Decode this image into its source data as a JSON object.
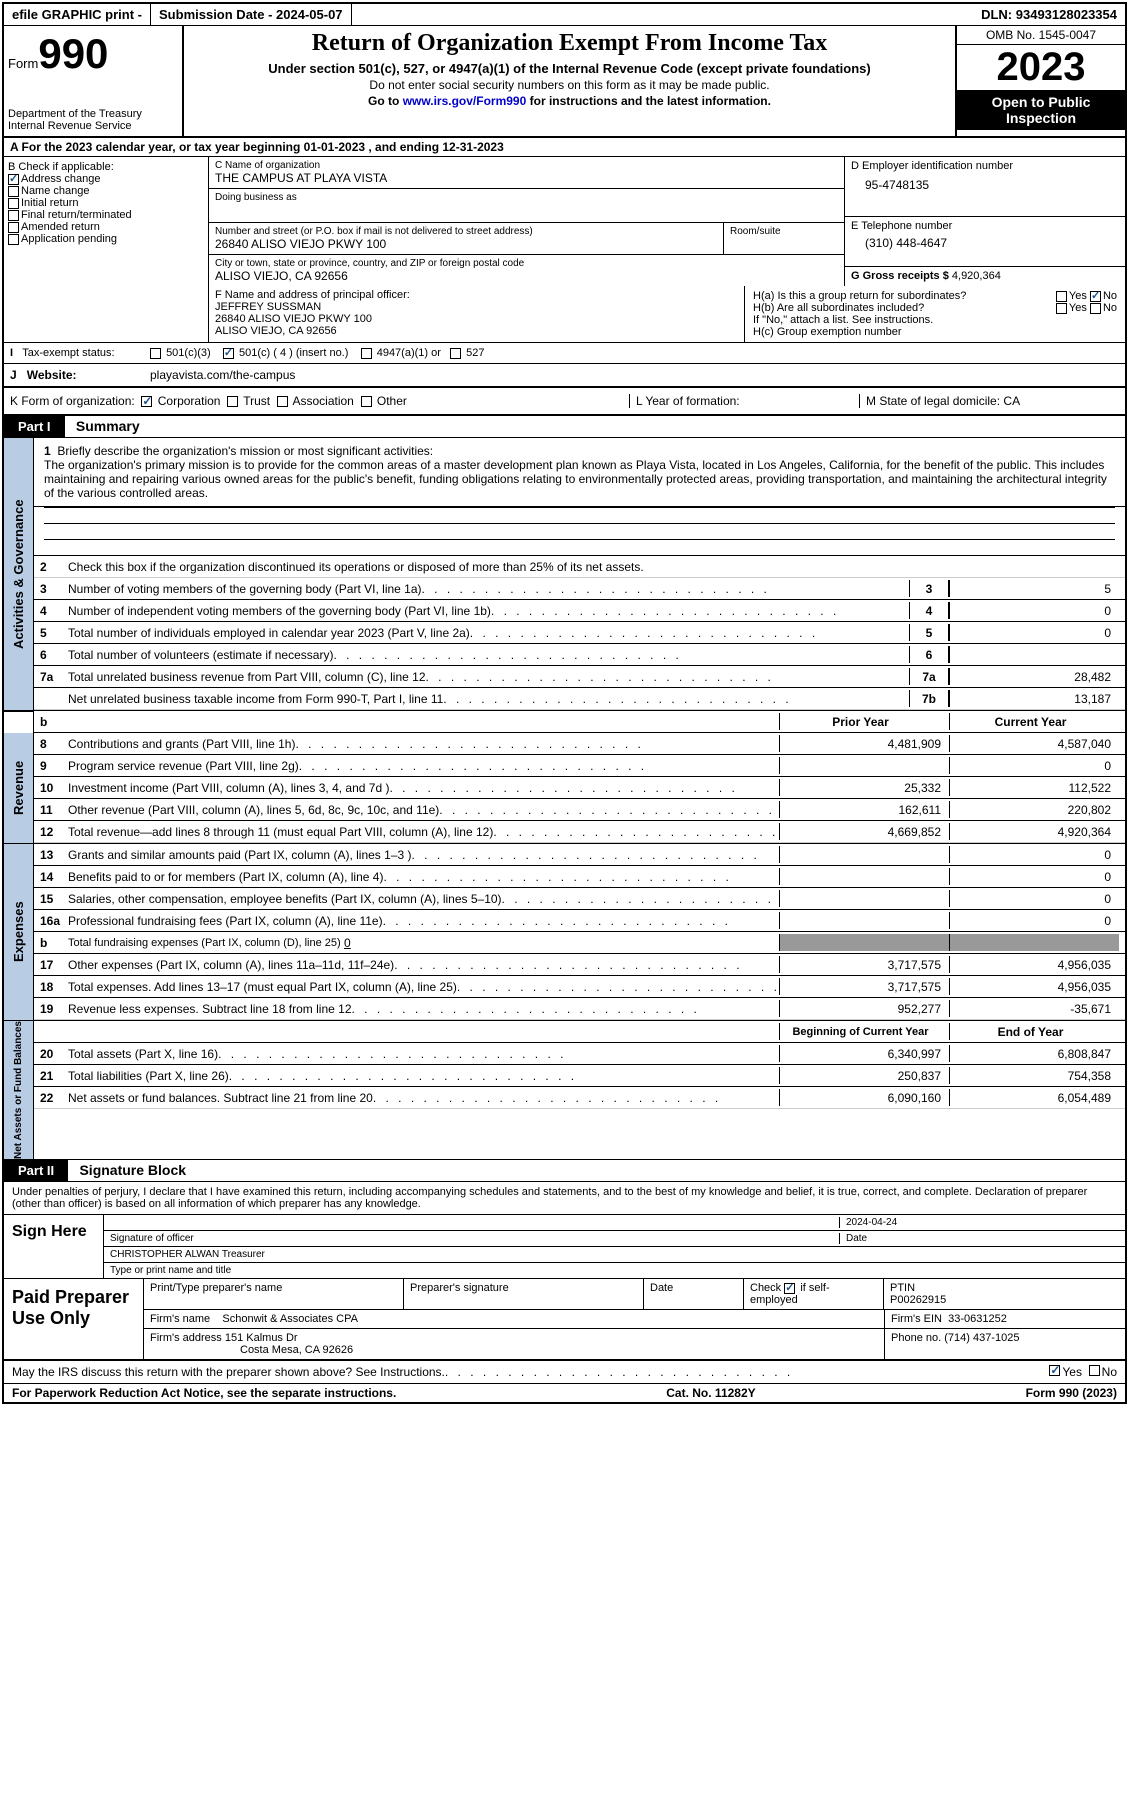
{
  "topbar": {
    "efile": "efile GRAPHIC print -",
    "submission": "Submission Date - 2024-05-07",
    "dln_label": "DLN:",
    "dln": "93493128023354"
  },
  "header": {
    "form_prefix": "Form",
    "form_num": "990",
    "dept": "Department of the Treasury Internal Revenue Service",
    "title": "Return of Organization Exempt From Income Tax",
    "sub": "Under section 501(c), 527, or 4947(a)(1) of the Internal Revenue Code (except private foundations)",
    "small1": "Do not enter social security numbers on this form as it may be made public.",
    "small2_pre": "Go to ",
    "small2_link": "www.irs.gov/Form990",
    "small2_post": " for instructions and the latest information.",
    "omb": "OMB No. 1545-0047",
    "year": "2023",
    "inspect": "Open to Public Inspection"
  },
  "rowA": "A  For the 2023 calendar year, or tax year beginning 01-01-2023    , and ending 12-31-2023",
  "B": {
    "label": "B Check if applicable:",
    "opts": [
      "Address change",
      "Name change",
      "Initial return",
      "Final return/terminated",
      "Amended return",
      "Application pending"
    ]
  },
  "C": {
    "name_lbl": "C Name of organization",
    "name": "THE CAMPUS AT PLAYA VISTA",
    "dba_lbl": "Doing business as",
    "addr_lbl": "Number and street (or P.O. box if mail is not delivered to street address)",
    "room_lbl": "Room/suite",
    "addr": "26840 ALISO VIEJO PKWY 100",
    "city_lbl": "City or town, state or province, country, and ZIP or foreign postal code",
    "city": "ALISO VIEJO, CA  92656"
  },
  "D": {
    "ein_lbl": "D Employer identification number",
    "ein": "95-4748135"
  },
  "E": {
    "tel_lbl": "E Telephone number",
    "tel": "(310) 448-4647"
  },
  "G": {
    "gross_lbl": "G Gross receipts $",
    "gross": "4,920,364"
  },
  "F": {
    "lbl": "F  Name and address of principal officer:",
    "name": "JEFFREY SUSSMAN",
    "addr1": "26840 ALISO VIEJO PKWY 100",
    "addr2": "ALISO VIEJO, CA  92656"
  },
  "H": {
    "a": "H(a)  Is this a group return for subordinates?",
    "yes": "Yes",
    "no": "No",
    "b": "H(b)  Are all subordinates included?",
    "bnote": "If \"No,\" attach a list. See instructions.",
    "c": "H(c)  Group exemption number"
  },
  "I": {
    "lbl": "Tax-exempt status:",
    "o1": "501(c)(3)",
    "o2": "501(c) ( 4 ) (insert no.)",
    "o3": "4947(a)(1) or",
    "o4": "527"
  },
  "J": {
    "lbl": "Website:",
    "val": "playavista.com/the-campus"
  },
  "K": {
    "lbl": "K Form of organization:",
    "o1": "Corporation",
    "o2": "Trust",
    "o3": "Association",
    "o4": "Other"
  },
  "L": {
    "lbl": "L Year of formation:"
  },
  "M": {
    "lbl": "M State of legal domicile:",
    "val": "CA"
  },
  "part1": {
    "hdr": "Part I",
    "title": "Summary"
  },
  "summary": {
    "l1_lbl": "Briefly describe the organization's mission or most significant activities:",
    "l1": "The organization's primary mission is to provide for the common areas of a master development plan known as Playa Vista, located in Los Angeles, California, for the benefit of the public. This includes maintaining and repairing various owned areas for the public's benefit, funding obligations relating to environmentally protected areas, providing transportation, and maintaining the architectural integrity of the various controlled areas.",
    "l2": "Check this box        if the organization discontinued its operations or disposed of more than 25% of its net assets.",
    "rows": [
      {
        "n": "3",
        "t": "Number of voting members of the governing body (Part VI, line 1a)",
        "c": "3",
        "v": "5"
      },
      {
        "n": "4",
        "t": "Number of independent voting members of the governing body (Part VI, line 1b)",
        "c": "4",
        "v": "0"
      },
      {
        "n": "5",
        "t": "Total number of individuals employed in calendar year 2023 (Part V, line 2a)",
        "c": "5",
        "v": "0"
      },
      {
        "n": "6",
        "t": "Total number of volunteers (estimate if necessary)",
        "c": "6",
        "v": ""
      },
      {
        "n": "7a",
        "t": "Total unrelated business revenue from Part VIII, column (C), line 12",
        "c": "7a",
        "v": "28,482"
      },
      {
        "n": "",
        "t": "Net unrelated business taxable income from Form 990-T, Part I, line 11",
        "c": "7b",
        "v": "13,187"
      }
    ],
    "colh": {
      "l": "b",
      "prior": "Prior Year",
      "curr": "Current Year"
    }
  },
  "revenue": {
    "tab": "Revenue",
    "rows": [
      {
        "n": "8",
        "t": "Contributions and grants (Part VIII, line 1h)",
        "p": "4,481,909",
        "c": "4,587,040"
      },
      {
        "n": "9",
        "t": "Program service revenue (Part VIII, line 2g)",
        "p": "",
        "c": "0"
      },
      {
        "n": "10",
        "t": "Investment income (Part VIII, column (A), lines 3, 4, and 7d )",
        "p": "25,332",
        "c": "112,522"
      },
      {
        "n": "11",
        "t": "Other revenue (Part VIII, column (A), lines 5, 6d, 8c, 9c, 10c, and 11e)",
        "p": "162,611",
        "c": "220,802"
      },
      {
        "n": "12",
        "t": "Total revenue—add lines 8 through 11 (must equal Part VIII, column (A), line 12)",
        "p": "4,669,852",
        "c": "4,920,364"
      }
    ]
  },
  "expenses": {
    "tab": "Expenses",
    "rows": [
      {
        "n": "13",
        "t": "Grants and similar amounts paid (Part IX, column (A), lines 1–3 )",
        "p": "",
        "c": "0"
      },
      {
        "n": "14",
        "t": "Benefits paid to or for members (Part IX, column (A), line 4)",
        "p": "",
        "c": "0"
      },
      {
        "n": "15",
        "t": "Salaries, other compensation, employee benefits (Part IX, column (A), lines 5–10)",
        "p": "",
        "c": "0"
      },
      {
        "n": "16a",
        "t": "Professional fundraising fees (Part IX, column (A), line 11e)",
        "p": "",
        "c": "0"
      }
    ],
    "l16b_n": "b",
    "l16b": "Total fundraising expenses (Part IX, column (D), line 25)",
    "l16b_v": "0",
    "rows2": [
      {
        "n": "17",
        "t": "Other expenses (Part IX, column (A), lines 11a–11d, 11f–24e)",
        "p": "3,717,575",
        "c": "4,956,035"
      },
      {
        "n": "18",
        "t": "Total expenses. Add lines 13–17 (must equal Part IX, column (A), line 25)",
        "p": "3,717,575",
        "c": "4,956,035"
      },
      {
        "n": "19",
        "t": "Revenue less expenses. Subtract line 18 from line 12",
        "p": "952,277",
        "c": "-35,671"
      }
    ]
  },
  "netassets": {
    "tab": "Net Assets or Fund Balances",
    "hdr": {
      "begin": "Beginning of Current Year",
      "end": "End of Year"
    },
    "rows": [
      {
        "n": "20",
        "t": "Total assets (Part X, line 16)",
        "p": "6,340,997",
        "c": "6,808,847"
      },
      {
        "n": "21",
        "t": "Total liabilities (Part X, line 26)",
        "p": "250,837",
        "c": "754,358"
      },
      {
        "n": "22",
        "t": "Net assets or fund balances. Subtract line 21 from line 20",
        "p": "6,090,160",
        "c": "6,054,489"
      }
    ]
  },
  "part2": {
    "hdr": "Part II",
    "title": "Signature Block"
  },
  "sig": {
    "perjury": "Under penalties of perjury, I declare that I have examined this return, including accompanying schedules and statements, and to the best of my knowledge and belief, it is true, correct, and complete. Declaration of preparer (other than officer) is based on all information of which preparer has any knowledge.",
    "sign_here": "Sign Here",
    "date": "2024-04-24",
    "sig_lbl": "Signature of officer",
    "date_lbl": "Date",
    "officer": "CHRISTOPHER ALWAN  Treasurer",
    "name_lbl": "Type or print name and title"
  },
  "paid": {
    "lbl": "Paid Preparer Use Only",
    "h": {
      "prep": "Print/Type preparer's name",
      "sig": "Preparer's signature",
      "date": "Date",
      "check": "Check",
      "self": "if self-employed",
      "ptin_l": "PTIN",
      "ptin": "P00262915"
    },
    "firm_lbl": "Firm's name",
    "firm": "Schonwit & Associates CPA",
    "ein_lbl": "Firm's EIN",
    "ein": "33-0631252",
    "addr_lbl": "Firm's address",
    "addr1": "151 Kalmus Dr",
    "addr2": "Costa Mesa, CA  92626",
    "phone_lbl": "Phone no.",
    "phone": "(714) 437-1025"
  },
  "bottom": {
    "q": "May the IRS discuss this return with the preparer shown above? See Instructions.",
    "yes": "Yes",
    "no": "No"
  },
  "footer": {
    "l": "For Paperwork Reduction Act Notice, see the separate instructions.",
    "m": "Cat. No. 11282Y",
    "r": "Form 990 (2023)"
  },
  "tabs": {
    "act": "Activities & Governance"
  },
  "colors": {
    "blue_tab": "#b8cce4",
    "check": "#1a5490"
  }
}
